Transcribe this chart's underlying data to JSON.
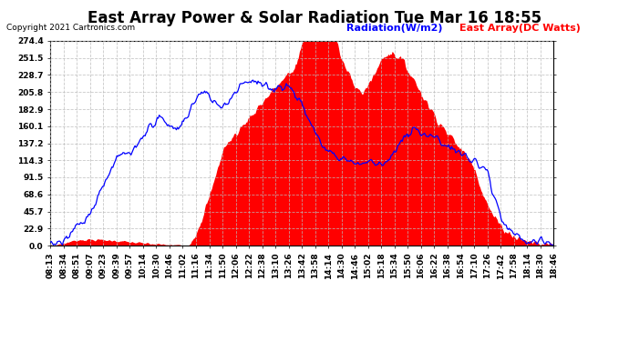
{
  "title": "East Array Power & Solar Radiation Tue Mar 16 18:55",
  "copyright": "Copyright 2021 Cartronics.com",
  "legend_radiation": "Radiation(W/m2)",
  "legend_east": "East Array(DC Watts)",
  "radiation_color": "blue",
  "east_color": "red",
  "background_color": "white",
  "grid_color": "#bbbbbb",
  "yticks": [
    0.0,
    22.9,
    45.7,
    68.6,
    91.5,
    114.3,
    137.2,
    160.1,
    182.9,
    205.8,
    228.7,
    251.5,
    274.4
  ],
  "ylim": [
    0.0,
    274.4
  ],
  "xtick_labels": [
    "08:13",
    "08:34",
    "08:51",
    "09:07",
    "09:23",
    "09:39",
    "09:57",
    "10:14",
    "10:30",
    "10:46",
    "11:02",
    "11:16",
    "11:34",
    "11:50",
    "12:06",
    "12:22",
    "12:38",
    "13:10",
    "13:26",
    "13:42",
    "13:58",
    "14:14",
    "14:30",
    "14:46",
    "15:02",
    "15:18",
    "15:34",
    "15:50",
    "16:06",
    "16:22",
    "16:38",
    "16:54",
    "17:10",
    "17:26",
    "17:42",
    "17:58",
    "18:14",
    "18:30",
    "18:46"
  ],
  "figsize": [
    6.9,
    3.75
  ],
  "dpi": 100,
  "title_fontsize": 12,
  "legend_fontsize": 8,
  "tick_fontsize": 6.5,
  "copyright_fontsize": 6.5
}
